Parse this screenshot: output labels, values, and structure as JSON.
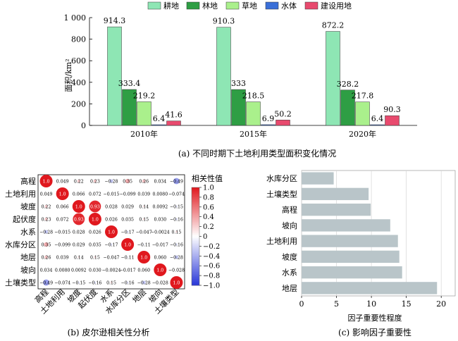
{
  "chart_data": [
    {
      "type": "bar",
      "categories": [
        "2010年",
        "2015年",
        "2020年"
      ],
      "series": [
        {
          "name": "耕地",
          "values": [
            914.3,
            910.3,
            872.2
          ],
          "color": "#8ee6b4"
        },
        {
          "name": "林地",
          "values": [
            333.4,
            333,
            328.2
          ],
          "color": "#2e9e44"
        },
        {
          "name": "草地",
          "values": [
            219.2,
            218.5,
            217.8
          ],
          "color": "#aaf08c"
        },
        {
          "name": "水体",
          "values": [
            6.4,
            6.9,
            6.4
          ],
          "color": "#3a6fd8"
        },
        {
          "name": "建设用地",
          "values": [
            41.6,
            50.2,
            90.3
          ],
          "color": "#e84a6e"
        }
      ],
      "value_labels": [
        [
          "914.3",
          "333.4",
          "219.2",
          "6.4",
          "41.6"
        ],
        [
          "910.3",
          "333",
          "218.5",
          "6.9",
          "50.2"
        ],
        [
          "872.2",
          "328.2",
          "217.8",
          "6.4",
          "90.3"
        ]
      ],
      "ylabel": "面积/km²",
      "ylim": [
        0,
        1000
      ],
      "yticks": [
        0,
        200,
        400,
        600,
        800,
        1000
      ],
      "ytick_labels": [
        "0",
        "200",
        "400",
        "600",
        "800",
        "1 000"
      ],
      "legend_position": "top",
      "caption": "(a) 不同时期下土地利用类型面积变化情况"
    },
    {
      "type": "heatmap",
      "variables": [
        "高程",
        "土地利用",
        "坡度",
        "起伏度",
        "水系",
        "水库分区",
        "地层",
        "坡向",
        "土壤类型"
      ],
      "matrix": [
        [
          1.0,
          0.049,
          0.22,
          0.23,
          -0.28,
          0.35,
          0.26,
          0.034,
          -0.49
        ],
        [
          0.049,
          1.0,
          0.066,
          0.072,
          -0.015,
          -0.099,
          0.039,
          0.008,
          -0.074
        ],
        [
          0.22,
          0.066,
          1.0,
          0.93,
          0.028,
          0.029,
          0.14,
          0.0092,
          -0.15
        ],
        [
          0.23,
          0.072,
          0.93,
          1.0,
          0.026,
          0.035,
          0.15,
          0.03,
          -0.16
        ],
        [
          -0.28,
          -0.015,
          0.028,
          0.026,
          1.0,
          -0.17,
          -0.047,
          -0.0024,
          0.15
        ],
        [
          0.35,
          -0.099,
          0.029,
          0.035,
          -0.17,
          1.0,
          -0.11,
          -0.017,
          -0.16
        ],
        [
          0.26,
          0.039,
          0.14,
          0.15,
          -0.047,
          -0.11,
          1.0,
          0.06,
          -0.28
        ],
        [
          0.034,
          0.008,
          0.0092,
          0.03,
          -0.0024,
          -0.017,
          0.06,
          1.0,
          -0.028
        ],
        [
          -0.49,
          -0.074,
          -0.15,
          -0.16,
          0.15,
          -0.16,
          -0.28,
          -0.028,
          1.0
        ]
      ],
      "cell_labels": [
        [
          "1.0",
          "0.049",
          "0.22",
          "0.23",
          "−0.28",
          "0.35",
          "0.26",
          "0.034",
          "−0.49"
        ],
        [
          "0.049",
          "1.0",
          "0.066",
          "0.072",
          "−0.015",
          "−0.099",
          "0.039",
          "0.0080",
          "−0.074"
        ],
        [
          "0.22",
          "0.066",
          "1.0",
          "0.93",
          "0.028",
          "0.029",
          "0.14",
          "0.0092",
          "−0.15"
        ],
        [
          "0.23",
          "0.072",
          "0.93",
          "1.0",
          "0.026",
          "0.035",
          "0.15",
          "0.030",
          "−0.16"
        ],
        [
          "−0.28",
          "−0.015",
          "0.028",
          "0.026",
          "1.0",
          "−0.17",
          "−0.047",
          "−0.0024",
          "0.15"
        ],
        [
          "0.35",
          "−0.099",
          "0.029",
          "0.035",
          "−0.17",
          "1.0",
          "−0.11",
          "−0.017",
          "−0.16"
        ],
        [
          "0.26",
          "0.039",
          "0.14",
          "0.15",
          "−0.047",
          "−0.11",
          "1.0",
          "0.060",
          "−0.28"
        ],
        [
          "0.034",
          "0.0080",
          "0.0092",
          "0.030",
          "−0.0024",
          "−0.017",
          "0.060",
          "1.0",
          "−0.028"
        ],
        [
          "−0.49",
          "−0.074",
          "−0.15",
          "−0.16",
          "0.15",
          "−0.16",
          "−0.28",
          "−0.028",
          "1.0"
        ]
      ],
      "colorbar_title": "相关性值",
      "colorbar_ticks": [
        1.0,
        0.8,
        0.6,
        0.4,
        0.2,
        0,
        -0.2,
        -0.4,
        -0.6,
        -0.8,
        -1.0
      ],
      "colorbar_tick_labels": [
        "1.0",
        "0.8",
        "0.6",
        "0.4",
        "0.2",
        "0",
        "−0.2",
        "−0.4",
        "−0.6",
        "−0.8",
        "−1.0"
      ],
      "colors": {
        "positive": "#e0181e",
        "negative": "#2836d8"
      },
      "caption": "(b) 皮尔逊相关性分析"
    },
    {
      "type": "bar",
      "orientation": "horizontal",
      "categories": [
        "水库分区",
        "土壤类型",
        "高程",
        "坡向",
        "土地利用",
        "坡度",
        "水系",
        "地层"
      ],
      "values": [
        4.6,
        9.6,
        9.9,
        12.7,
        13.8,
        14.0,
        14.4,
        19.4
      ],
      "xlabel": "因子重要性程度",
      "xlim": [
        0,
        22
      ],
      "xticks": [
        0,
        5,
        10,
        15,
        20
      ],
      "xtick_labels": [
        "0",
        "5",
        "10",
        "15",
        "20"
      ],
      "bar_color": "#b9c5c9",
      "grid": true,
      "caption": "(c) 影响因子重要性"
    }
  ]
}
